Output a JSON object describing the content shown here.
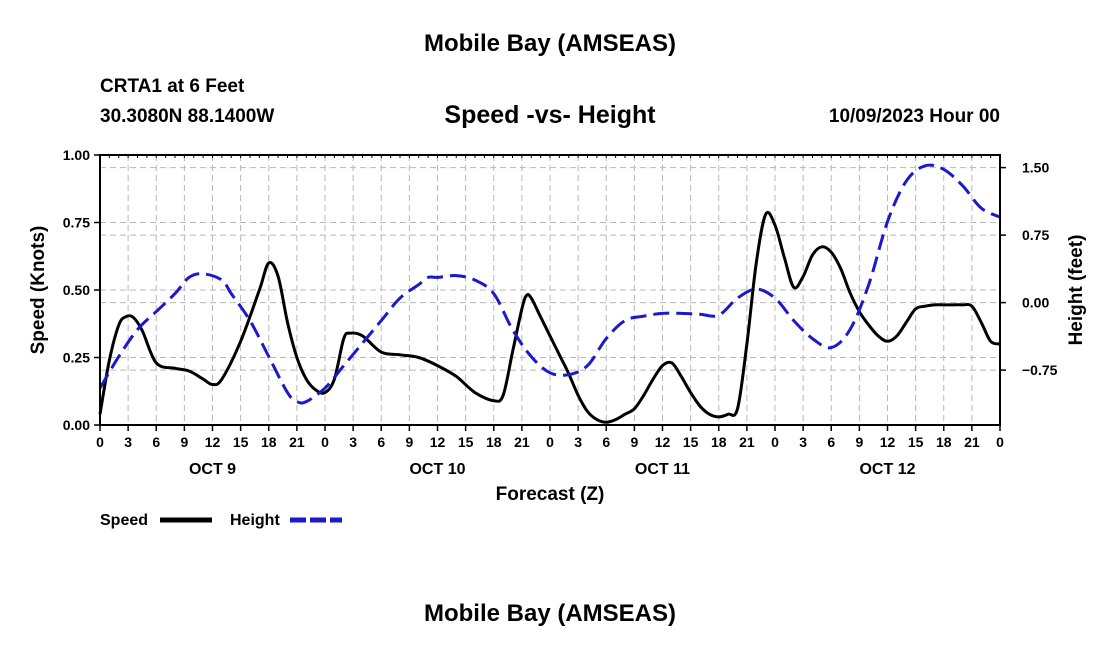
{
  "header": {
    "title": "Mobile Bay (AMSEAS)",
    "station": "CRTA1 at 6 Feet",
    "coords": "30.3080N  88.1400W",
    "subtitle": "Speed -vs- Height",
    "datetime": "10/09/2023 Hour 00"
  },
  "footer": {
    "title": "Mobile Bay (AMSEAS)"
  },
  "chart_data": {
    "type": "line",
    "title": "Speed -vs- Height",
    "xlabel": "Forecast (Z)",
    "ylabel": "Speed (Knots)",
    "y2label": "Height (feet)",
    "xlim": [
      0,
      96
    ],
    "ylim": [
      0,
      1.0
    ],
    "y2lim": [
      -1.36,
      1.64
    ],
    "grid": true,
    "x_tick_values": [
      0,
      3,
      6,
      9,
      12,
      15,
      18,
      21,
      24,
      27,
      30,
      33,
      36,
      39,
      42,
      45,
      48,
      51,
      54,
      57,
      60,
      63,
      66,
      69,
      72,
      75,
      78,
      81,
      84,
      87,
      90,
      93,
      96
    ],
    "x_tick_labels": [
      "0",
      "3",
      "6",
      "9",
      "12",
      "15",
      "18",
      "21",
      "0",
      "3",
      "6",
      "9",
      "12",
      "15",
      "18",
      "21",
      "0",
      "3",
      "6",
      "9",
      "12",
      "15",
      "18",
      "21",
      "0",
      "3",
      "6",
      "9",
      "12",
      "15",
      "18",
      "21",
      "0"
    ],
    "day_labels": [
      {
        "label": "OCT 9",
        "x": 12
      },
      {
        "label": "OCT 10",
        "x": 36
      },
      {
        "label": "OCT 11",
        "x": 60
      },
      {
        "label": "OCT 12",
        "x": 84
      }
    ],
    "y_ticks": [
      0.0,
      0.25,
      0.5,
      0.75,
      1.0
    ],
    "y_tick_labels": [
      "0.00",
      "0.25",
      "0.50",
      "0.75",
      "1.00"
    ],
    "y2_ticks": [
      -0.75,
      0.0,
      0.75,
      1.5
    ],
    "y2_tick_labels": [
      "−0.75",
      "0.00",
      "0.75",
      "1.50"
    ],
    "legend_position": "bottom-left",
    "series": [
      {
        "name": "Speed",
        "axis": "left",
        "color": "#000000",
        "dash": "solid",
        "x": [
          0,
          1,
          2,
          2.7,
          3.5,
          4.5,
          6,
          8,
          9.5,
          11,
          12,
          13,
          15,
          17,
          18,
          19,
          20,
          21,
          22,
          23,
          24,
          25,
          26,
          26.7,
          28,
          30,
          32,
          34,
          36,
          38,
          40,
          42,
          43,
          44,
          45,
          45.5,
          46,
          47,
          48,
          49,
          50,
          51,
          52,
          53,
          54,
          55,
          56,
          57,
          58,
          59,
          60,
          61,
          62,
          63,
          64,
          65,
          66,
          67,
          68,
          69,
          70,
          71,
          72,
          73,
          74,
          75,
          76,
          77,
          78,
          79,
          80,
          81,
          82,
          83,
          84,
          85,
          86,
          87,
          88,
          89,
          90,
          91,
          92,
          93,
          94,
          95,
          96
        ],
        "values": [
          0.04,
          0.24,
          0.37,
          0.4,
          0.4,
          0.35,
          0.23,
          0.21,
          0.2,
          0.17,
          0.15,
          0.17,
          0.31,
          0.5,
          0.6,
          0.55,
          0.38,
          0.25,
          0.17,
          0.13,
          0.12,
          0.17,
          0.32,
          0.34,
          0.33,
          0.27,
          0.26,
          0.25,
          0.22,
          0.18,
          0.12,
          0.09,
          0.11,
          0.27,
          0.43,
          0.48,
          0.47,
          0.4,
          0.33,
          0.26,
          0.19,
          0.11,
          0.05,
          0.02,
          0.01,
          0.02,
          0.04,
          0.06,
          0.11,
          0.17,
          0.22,
          0.23,
          0.18,
          0.12,
          0.07,
          0.04,
          0.03,
          0.04,
          0.06,
          0.3,
          0.6,
          0.78,
          0.74,
          0.62,
          0.51,
          0.55,
          0.63,
          0.66,
          0.64,
          0.58,
          0.49,
          0.42,
          0.37,
          0.33,
          0.31,
          0.33,
          0.38,
          0.43,
          0.44,
          0.445,
          0.445,
          0.445,
          0.445,
          0.44,
          0.38,
          0.31,
          0.3
        ]
      },
      {
        "name": "Height",
        "axis": "right",
        "color": "#1a1acc",
        "dash": "dashed",
        "x": [
          0,
          2,
          4,
          6,
          8,
          9.5,
          11,
          13,
          14,
          16,
          18,
          20,
          21,
          22,
          24,
          26,
          28,
          30,
          32,
          34,
          35,
          36,
          38,
          40,
          42,
          44,
          46,
          48,
          50,
          52,
          54,
          56,
          58,
          60,
          62,
          64,
          66,
          68,
          70,
          72,
          74,
          76,
          78,
          80,
          82,
          84,
          86,
          88,
          90,
          92,
          94,
          96
        ],
        "values": [
          -0.95,
          -0.6,
          -0.3,
          -0.1,
          0.1,
          0.28,
          0.32,
          0.25,
          0.1,
          -0.2,
          -0.6,
          -1.0,
          -1.1,
          -1.1,
          -0.95,
          -0.7,
          -0.45,
          -0.2,
          0.05,
          0.2,
          0.28,
          0.28,
          0.3,
          0.25,
          0.1,
          -0.3,
          -0.6,
          -0.78,
          -0.8,
          -0.7,
          -0.4,
          -0.2,
          -0.15,
          -0.12,
          -0.12,
          -0.13,
          -0.14,
          0.05,
          0.15,
          0.05,
          -0.2,
          -0.4,
          -0.5,
          -0.3,
          0.2,
          0.9,
          1.35,
          1.52,
          1.48,
          1.3,
          1.05,
          0.95
        ]
      }
    ]
  }
}
